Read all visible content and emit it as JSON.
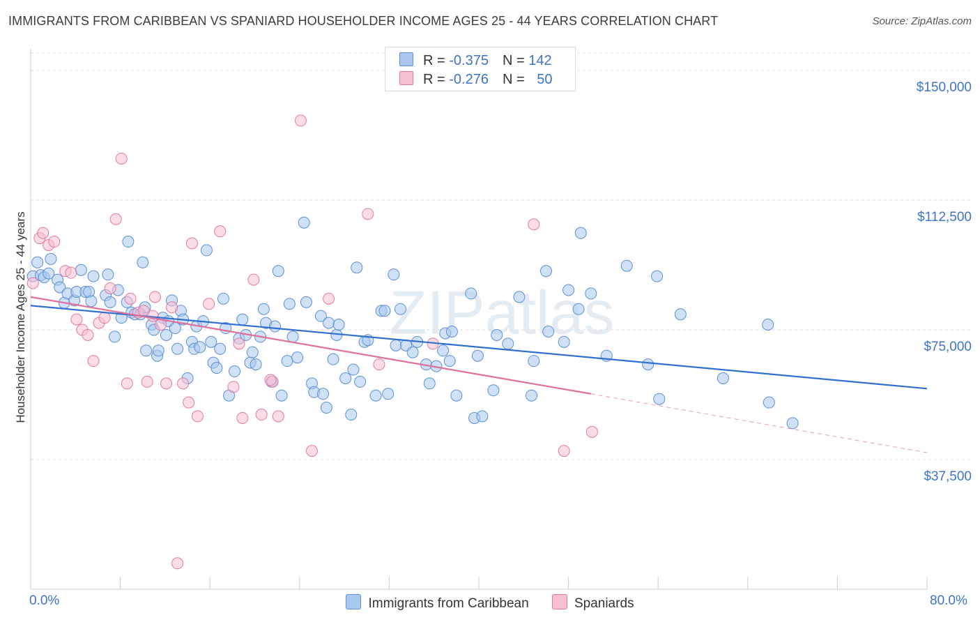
{
  "title": "IMMIGRANTS FROM CARIBBEAN VS SPANIARD HOUSEHOLDER INCOME AGES 25 - 44 YEARS CORRELATION CHART",
  "source": "Source: ZipAtlas.com",
  "watermark": "ZIPatlas",
  "stats": [
    {
      "r_label": "R = ",
      "r_value": "-0.375",
      "n_label": "N = ",
      "n_value": "142",
      "color": "#aac8ef",
      "border": "#5b8fd6"
    },
    {
      "r_label": "R = ",
      "r_value": "-0.276",
      "n_label": "N = ",
      "n_value": "50",
      "color": "#f7c0d3",
      "border": "#e27aa0"
    }
  ],
  "legend": [
    {
      "label": "Immigrants from Caribbean",
      "color": "#aac8ef",
      "border": "#5b8fd6"
    },
    {
      "label": "Spaniards",
      "color": "#f7c0d3",
      "border": "#e27aa0"
    }
  ],
  "chart_data": {
    "type": "scatter",
    "title": "IMMIGRANTS FROM CARIBBEAN VS SPANIARD HOUSEHOLDER INCOME AGES 25 - 44 YEARS CORRELATION CHART",
    "xlabel": "",
    "ylabel": "Householder Income Ages 25 - 44 years",
    "xlim": [
      0,
      80
    ],
    "ylim": [
      0,
      156250
    ],
    "x_tick_labels": [
      "0.0%",
      "80.0%"
    ],
    "y_ticks": [
      37500,
      75000,
      112500,
      150000
    ],
    "y_tick_labels": [
      "$37,500",
      "$75,000",
      "$112,500",
      "$150,000"
    ],
    "grid": true,
    "legend_position": "bottom",
    "series": [
      {
        "name": "Immigrants from Caribbean",
        "color": "#aac8ef",
        "stroke": "#5b8fd6",
        "trend": {
          "x": [
            0,
            80
          ],
          "y": [
            82000,
            58000
          ],
          "color": "#2f6fcf"
        },
        "points": [
          [
            0.2,
            90500
          ],
          [
            0.6,
            94500
          ],
          [
            0.9,
            90800
          ],
          [
            1.2,
            90200
          ],
          [
            1.6,
            91300
          ],
          [
            1.8,
            95500
          ],
          [
            2.4,
            89500
          ],
          [
            2.6,
            87300
          ],
          [
            3.0,
            82800
          ],
          [
            3.3,
            85500
          ],
          [
            3.9,
            83500
          ],
          [
            4.1,
            86000
          ],
          [
            4.5,
            92300
          ],
          [
            4.9,
            86000
          ],
          [
            5.2,
            86000
          ],
          [
            5.4,
            83300
          ],
          [
            5.6,
            90500
          ],
          [
            6.7,
            85000
          ],
          [
            6.9,
            91000
          ],
          [
            7.1,
            83000
          ],
          [
            7.5,
            73000
          ],
          [
            7.8,
            86500
          ],
          [
            8.1,
            78500
          ],
          [
            8.6,
            83000
          ],
          [
            8.7,
            100500
          ],
          [
            9.0,
            80000
          ],
          [
            9.3,
            79500
          ],
          [
            9.8,
            79500
          ],
          [
            10.0,
            94500
          ],
          [
            10.2,
            81500
          ],
          [
            10.3,
            69000
          ],
          [
            10.8,
            76500
          ],
          [
            11.0,
            75000
          ],
          [
            11.3,
            67500
          ],
          [
            11.4,
            69000
          ],
          [
            11.8,
            78500
          ],
          [
            12.1,
            73500
          ],
          [
            12.3,
            77500
          ],
          [
            12.6,
            83500
          ],
          [
            12.9,
            75500
          ],
          [
            13.1,
            69500
          ],
          [
            13.4,
            80500
          ],
          [
            13.6,
            78000
          ],
          [
            14.0,
            61000
          ],
          [
            14.4,
            71500
          ],
          [
            14.6,
            69500
          ],
          [
            14.8,
            76000
          ],
          [
            15.1,
            70000
          ],
          [
            15.4,
            77500
          ],
          [
            15.7,
            98000
          ],
          [
            16.1,
            71500
          ],
          [
            16.3,
            65500
          ],
          [
            16.6,
            64000
          ],
          [
            16.9,
            69500
          ],
          [
            17.2,
            84000
          ],
          [
            17.4,
            75500
          ],
          [
            17.7,
            56000
          ],
          [
            18.2,
            63000
          ],
          [
            18.6,
            72500
          ],
          [
            18.9,
            78000
          ],
          [
            19.2,
            73500
          ],
          [
            19.6,
            65500
          ],
          [
            19.8,
            68500
          ],
          [
            20.1,
            65000
          ],
          [
            20.5,
            73000
          ],
          [
            20.8,
            81000
          ],
          [
            21.0,
            77000
          ],
          [
            21.5,
            60000
          ],
          [
            21.8,
            76000
          ],
          [
            22.1,
            92000
          ],
          [
            22.4,
            56000
          ],
          [
            22.9,
            66000
          ],
          [
            23.1,
            82500
          ],
          [
            23.4,
            73000
          ],
          [
            23.8,
            67000
          ],
          [
            24.4,
            106000
          ],
          [
            24.6,
            83000
          ],
          [
            25.1,
            59500
          ],
          [
            25.3,
            57000
          ],
          [
            25.9,
            79000
          ],
          [
            26.1,
            56500
          ],
          [
            26.4,
            52500
          ],
          [
            26.6,
            77000
          ],
          [
            27.0,
            66500
          ],
          [
            27.3,
            73500
          ],
          [
            27.5,
            76500
          ],
          [
            28.1,
            61000
          ],
          [
            28.6,
            50500
          ],
          [
            28.8,
            63500
          ],
          [
            29.1,
            93000
          ],
          [
            29.4,
            60000
          ],
          [
            29.8,
            71500
          ],
          [
            30.1,
            72000
          ],
          [
            30.8,
            56000
          ],
          [
            31.3,
            80500
          ],
          [
            31.6,
            80500
          ],
          [
            31.9,
            56500
          ],
          [
            32.4,
            91000
          ],
          [
            32.6,
            70500
          ],
          [
            33.0,
            81000
          ],
          [
            33.5,
            70500
          ],
          [
            34.1,
            68500
          ],
          [
            34.5,
            71500
          ],
          [
            35.3,
            65000
          ],
          [
            35.6,
            59500
          ],
          [
            36.2,
            64500
          ],
          [
            36.8,
            69000
          ],
          [
            37.0,
            74000
          ],
          [
            37.4,
            66000
          ],
          [
            37.6,
            74500
          ],
          [
            38.0,
            56000
          ],
          [
            39.3,
            85500
          ],
          [
            39.6,
            49500
          ],
          [
            39.9,
            67500
          ],
          [
            40.3,
            50000
          ],
          [
            41.3,
            57500
          ],
          [
            41.6,
            73500
          ],
          [
            42.6,
            71000
          ],
          [
            43.6,
            84500
          ],
          [
            44.7,
            56000
          ],
          [
            44.9,
            66000
          ],
          [
            46.0,
            92000
          ],
          [
            46.2,
            74500
          ],
          [
            47.6,
            71500
          ],
          [
            48.0,
            86500
          ],
          [
            48.9,
            81000
          ],
          [
            49.1,
            103000
          ],
          [
            50.0,
            85500
          ],
          [
            51.4,
            67500
          ],
          [
            53.2,
            93500
          ],
          [
            55.1,
            65000
          ],
          [
            55.9,
            90500
          ],
          [
            56.1,
            55000
          ],
          [
            58.0,
            79500
          ],
          [
            61.8,
            61000
          ],
          [
            65.8,
            76500
          ],
          [
            65.9,
            54000
          ],
          [
            68.0,
            48000
          ]
        ]
      },
      {
        "name": "Spaniards",
        "color": "#f7c0d3",
        "stroke": "#e27aa0",
        "trend": {
          "x": [
            0,
            50
          ],
          "y": [
            84500,
            56500
          ],
          "dash_to": [
            80,
            39500
          ],
          "color": "#e0709a"
        },
        "points": [
          [
            0.2,
            88500
          ],
          [
            0.8,
            101500
          ],
          [
            1.1,
            103000
          ],
          [
            1.6,
            99500
          ],
          [
            2.1,
            100500
          ],
          [
            3.1,
            92000
          ],
          [
            3.6,
            91500
          ],
          [
            4.1,
            78000
          ],
          [
            4.6,
            75000
          ],
          [
            5.1,
            73500
          ],
          [
            5.6,
            66000
          ],
          [
            6.1,
            77000
          ],
          [
            6.6,
            78500
          ],
          [
            7.1,
            87000
          ],
          [
            7.6,
            107000
          ],
          [
            8.1,
            124500
          ],
          [
            8.6,
            59500
          ],
          [
            8.9,
            84000
          ],
          [
            9.6,
            80000
          ],
          [
            10.1,
            80500
          ],
          [
            10.4,
            60000
          ],
          [
            10.9,
            79000
          ],
          [
            11.1,
            84500
          ],
          [
            11.6,
            76500
          ],
          [
            12.1,
            59500
          ],
          [
            12.6,
            81500
          ],
          [
            13.1,
            7500
          ],
          [
            13.6,
            59500
          ],
          [
            14.1,
            54000
          ],
          [
            14.4,
            100000
          ],
          [
            14.9,
            50000
          ],
          [
            15.9,
            82500
          ],
          [
            16.9,
            103500
          ],
          [
            18.1,
            58500
          ],
          [
            18.6,
            71000
          ],
          [
            18.9,
            49500
          ],
          [
            19.9,
            89500
          ],
          [
            20.6,
            50500
          ],
          [
            21.6,
            60000
          ],
          [
            22.1,
            50000
          ],
          [
            24.1,
            135500
          ],
          [
            25.1,
            40000
          ],
          [
            26.6,
            84000
          ],
          [
            30.1,
            108500
          ],
          [
            31.1,
            65000
          ],
          [
            35.9,
            71000
          ],
          [
            44.9,
            105500
          ],
          [
            47.6,
            40000
          ],
          [
            50.1,
            45500
          ],
          [
            21.4,
            60500
          ]
        ]
      }
    ]
  }
}
